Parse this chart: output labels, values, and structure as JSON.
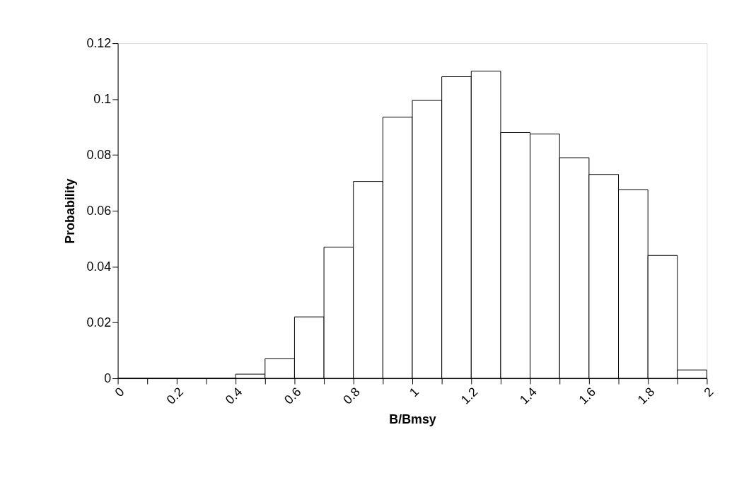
{
  "chart_data": {
    "type": "histogram",
    "xlabel": "B/Bmsy",
    "ylabel": "Probability",
    "bins": [
      0,
      0.1,
      0.2,
      0.3,
      0.4,
      0.5,
      0.6,
      0.7,
      0.8,
      0.9,
      1.0,
      1.1,
      1.2,
      1.3,
      1.4,
      1.5,
      1.6,
      1.7,
      1.8,
      1.9,
      2.0
    ],
    "values": [
      0,
      0,
      0,
      0,
      0.0015,
      0.007,
      0.022,
      0.047,
      0.0705,
      0.0935,
      0.0995,
      0.108,
      0.11,
      0.088,
      0.0875,
      0.079,
      0.073,
      0.0675,
      0.044,
      0.003
    ],
    "color": "#ffffff",
    "xlim": [
      0,
      2
    ],
    "xticks": [
      0,
      {
        "value": 0.1,
        "label": null
      },
      0.2,
      {
        "value": 0.3,
        "label": null
      },
      0.4,
      {
        "value": 0.5,
        "label": null
      },
      0.6,
      {
        "value": 0.7,
        "label": null
      },
      0.8,
      {
        "value": 0.9,
        "label": null
      },
      1,
      {
        "value": 1.1,
        "label": null
      },
      1.2,
      {
        "value": 1.3,
        "label": null
      },
      1.4,
      {
        "value": 1.5,
        "label": null
      },
      1.6,
      {
        "value": 1.7,
        "label": null
      },
      1.8,
      {
        "value": 1.9,
        "label": null
      },
      2
    ],
    "ylim": [
      0,
      0.12
    ],
    "yticks": [
      0,
      0.02,
      0.04,
      0.06,
      0.08,
      0.1,
      0.12
    ],
    "grid": false
  }
}
